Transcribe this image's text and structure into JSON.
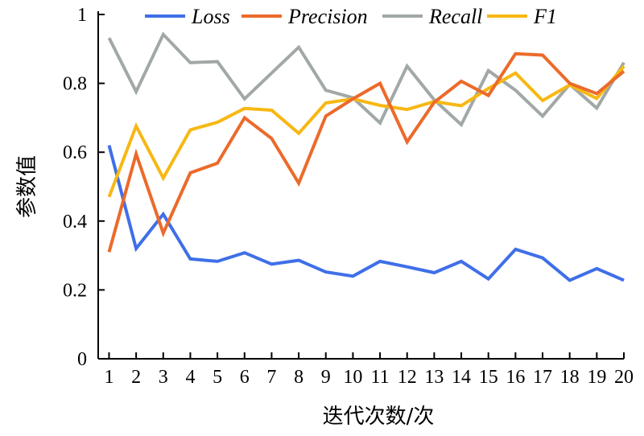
{
  "chart_data": {
    "type": "line",
    "xlabel": "迭代次数/次",
    "ylabel": "参数值",
    "x": [
      1,
      2,
      3,
      4,
      5,
      6,
      7,
      8,
      9,
      10,
      11,
      12,
      13,
      14,
      15,
      16,
      17,
      18,
      19,
      20
    ],
    "xlim": [
      0.6,
      20
    ],
    "ylim": [
      0,
      1
    ],
    "yticks": [
      "0",
      "0.2",
      "0.4",
      "0.6",
      "0.8",
      "1"
    ],
    "grid": false,
    "legend_position": "top",
    "series": [
      {
        "name": "Loss",
        "color": "#3f6fe8",
        "values": [
          0.62,
          0.32,
          0.42,
          0.29,
          0.283,
          0.308,
          0.275,
          0.286,
          0.252,
          0.24,
          0.283,
          0.267,
          0.25,
          0.283,
          0.232,
          0.318,
          0.293,
          0.228,
          0.262,
          0.228
        ]
      },
      {
        "name": "Precision",
        "color": "#ec6a2a",
        "values": [
          0.31,
          0.595,
          0.365,
          0.54,
          0.568,
          0.7,
          0.64,
          0.51,
          0.705,
          0.755,
          0.8,
          0.63,
          0.745,
          0.806,
          0.765,
          0.886,
          0.882,
          0.8,
          0.77,
          0.835
        ]
      },
      {
        "name": "Recall",
        "color": "#a1a8a7",
        "values": [
          0.932,
          0.776,
          0.942,
          0.86,
          0.863,
          0.755,
          0.83,
          0.905,
          0.78,
          0.758,
          0.685,
          0.85,
          0.752,
          0.68,
          0.837,
          0.78,
          0.705,
          0.797,
          0.728,
          0.86
        ]
      },
      {
        "name": "F1",
        "color": "#f7b814",
        "values": [
          0.47,
          0.676,
          0.525,
          0.665,
          0.687,
          0.727,
          0.722,
          0.655,
          0.743,
          0.755,
          0.736,
          0.724,
          0.747,
          0.735,
          0.785,
          0.83,
          0.75,
          0.795,
          0.756,
          0.85
        ]
      }
    ]
  }
}
